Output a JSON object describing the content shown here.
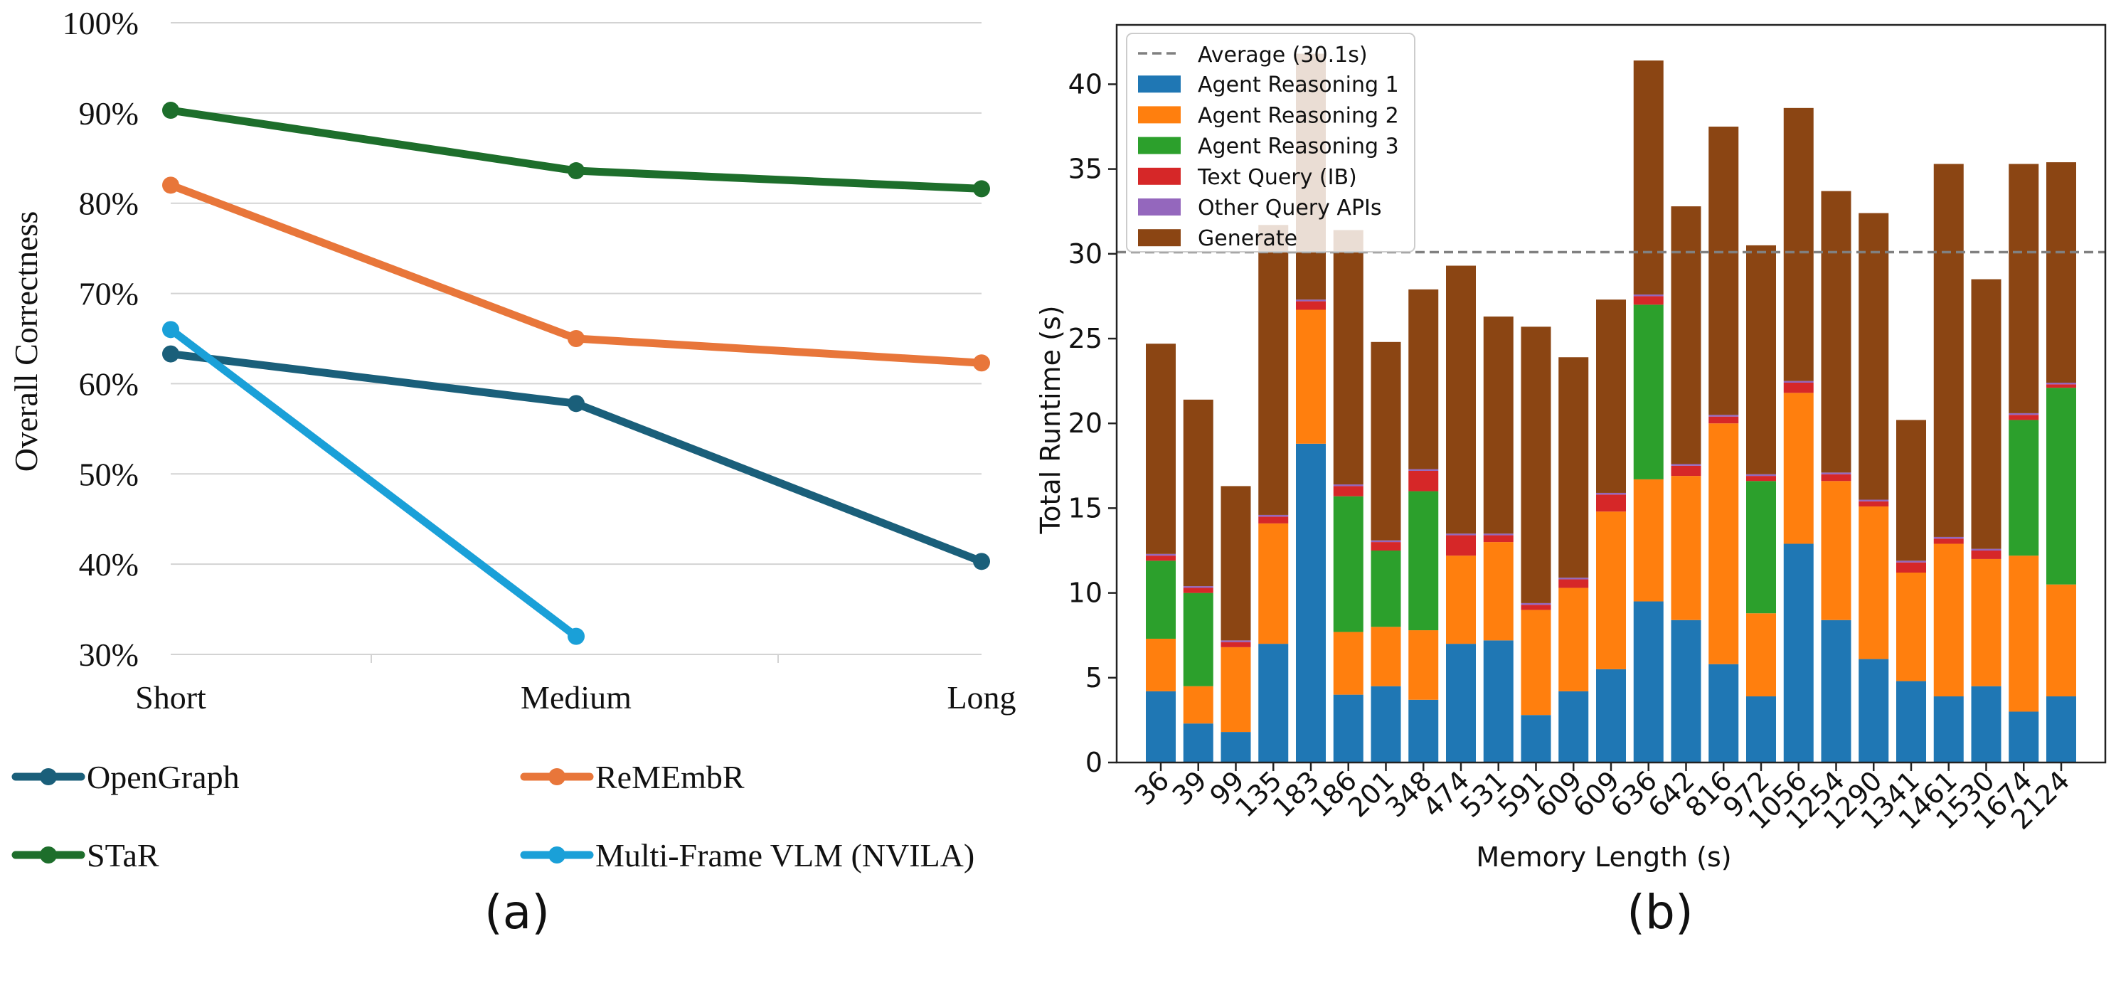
{
  "chart_data": [
    {
      "type": "line",
      "panel_label": "(a)",
      "ylabel": "Overall Correctness",
      "xlabel": "",
      "categories": [
        "Short",
        "Medium",
        "Long"
      ],
      "ylim": [
        30,
        100
      ],
      "yticks": [
        30,
        40,
        50,
        60,
        70,
        80,
        90,
        100
      ],
      "ytick_labels": [
        "30%",
        "40%",
        "50%",
        "60%",
        "70%",
        "80%",
        "90%",
        "100%"
      ],
      "grid": "horizontal",
      "legend_position": "bottom",
      "series": [
        {
          "name": "OpenGraph",
          "color": "#1a5f7a",
          "values": [
            63.3,
            57.8,
            40.3
          ]
        },
        {
          "name": "ReMEmbR",
          "color": "#e8763a",
          "values": [
            82.0,
            65.0,
            62.3
          ]
        },
        {
          "name": "STaR",
          "color": "#1d6e2b",
          "values": [
            90.3,
            83.6,
            81.6
          ]
        },
        {
          "name": "Multi-Frame VLM (NVILA)",
          "color": "#1aa0d8",
          "values": [
            66.0,
            32.0,
            null
          ]
        }
      ]
    },
    {
      "type": "bar",
      "stacked": true,
      "panel_label": "(b)",
      "xlabel": "Memory Length (s)",
      "ylabel": "Total Runtime (s)",
      "categories": [
        "36",
        "39",
        "99",
        "135",
        "183",
        "186",
        "201",
        "348",
        "474",
        "531",
        "591",
        "609",
        "609",
        "636",
        "642",
        "816",
        "972",
        "1056",
        "1254",
        "1290",
        "1341",
        "1461",
        "1530",
        "1674",
        "2124"
      ],
      "ylim": [
        0,
        43.5
      ],
      "yticks": [
        0,
        5,
        10,
        15,
        20,
        25,
        30,
        35,
        40
      ],
      "grid": "none",
      "legend_position": "upper-left",
      "average": {
        "value": 30.1,
        "label": "Average (30.1s)",
        "color": "#808080"
      },
      "series": [
        {
          "name": "Agent Reasoning 1",
          "color": "#1f77b4",
          "values": [
            4.2,
            2.3,
            1.8,
            7.0,
            18.8,
            4.0,
            4.5,
            3.7,
            7.0,
            7.2,
            2.8,
            4.2,
            5.5,
            9.5,
            8.4,
            5.8,
            3.9,
            12.9,
            8.4,
            6.1,
            4.8,
            3.9,
            4.5,
            3.0,
            3.9
          ]
        },
        {
          "name": "Agent Reasoning 2",
          "color": "#ff7f0e",
          "values": [
            3.1,
            2.2,
            5.0,
            7.1,
            7.9,
            3.7,
            3.5,
            4.1,
            5.2,
            5.8,
            6.2,
            6.1,
            9.3,
            7.2,
            8.5,
            14.2,
            4.9,
            8.9,
            8.2,
            9.0,
            6.4,
            9.0,
            7.5,
            9.2,
            6.6
          ]
        },
        {
          "name": "Agent Reasoning 3",
          "color": "#2ca02c",
          "values": [
            4.6,
            5.5,
            0,
            0,
            0,
            8.0,
            4.5,
            8.2,
            0,
            0,
            0,
            0,
            0,
            10.3,
            0,
            0,
            7.8,
            0,
            0,
            0,
            0,
            0,
            0,
            8.0,
            11.6
          ]
        },
        {
          "name": "Text Query (IB)",
          "color": "#d62728",
          "values": [
            0.3,
            0.3,
            0.3,
            0.4,
            0.5,
            0.6,
            0.5,
            1.2,
            1.2,
            0.4,
            0.3,
            0.5,
            1.0,
            0.5,
            0.6,
            0.4,
            0.3,
            0.6,
            0.4,
            0.3,
            0.6,
            0.3,
            0.5,
            0.3,
            0.2
          ]
        },
        {
          "name": "Other Query APIs",
          "color": "#9467bd",
          "values": [
            0.1,
            0.1,
            0.1,
            0.1,
            0.1,
            0.1,
            0.1,
            0.1,
            0.1,
            0.1,
            0.1,
            0.1,
            0.1,
            0.1,
            0.1,
            0.1,
            0.1,
            0.1,
            0.1,
            0.1,
            0.1,
            0.1,
            0.1,
            0.1,
            0.1
          ]
        },
        {
          "name": "Generate",
          "color": "#8b4513",
          "values": [
            12.4,
            11.0,
            9.1,
            17.1,
            14.5,
            15.0,
            11.7,
            10.6,
            15.8,
            12.8,
            16.3,
            13.0,
            11.4,
            13.8,
            15.2,
            17.0,
            13.5,
            16.1,
            16.6,
            16.9,
            8.3,
            22.0,
            15.9,
            14.7,
            13.0
          ]
        }
      ]
    }
  ]
}
